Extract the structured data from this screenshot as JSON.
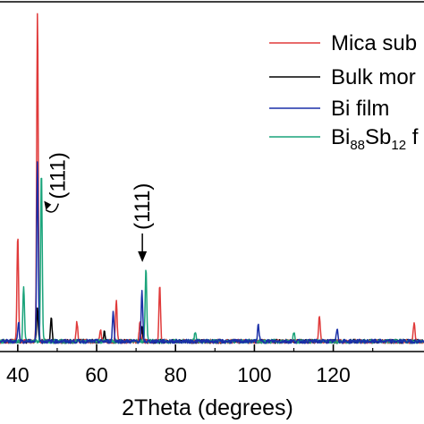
{
  "chart_data": {
    "type": "line",
    "xlabel": "2Theta (degrees)",
    "ylabel": "",
    "title": "",
    "xlim": [
      35.5,
      143
    ],
    "ylim": [
      0,
      1.0
    ],
    "x_ticks": [
      40,
      60,
      80,
      100,
      120
    ],
    "x_tick_labels": [
      "40",
      "60",
      "80",
      "100",
      "120"
    ],
    "grid": false,
    "legend_position": "top-right",
    "series": [
      {
        "name": "Mica sub",
        "color": "#e03a3a",
        "peaks": [
          [
            40.0,
            0.32
          ],
          [
            45.0,
            1.0
          ],
          [
            55.0,
            0.06
          ],
          [
            61.0,
            0.04
          ],
          [
            65.0,
            0.12
          ],
          [
            71.0,
            0.06
          ],
          [
            76.0,
            0.17
          ],
          [
            116.5,
            0.08
          ],
          [
            140.5,
            0.06
          ]
        ]
      },
      {
        "name": "Bulk mor",
        "color": "#000000",
        "peaks": [
          [
            45.0,
            0.1
          ],
          [
            48.5,
            0.07
          ],
          [
            62.0,
            0.03
          ],
          [
            71.5,
            0.04
          ]
        ]
      },
      {
        "name": "Bi film",
        "color": "#1a2fa8",
        "peaks": [
          [
            40.2,
            0.06
          ],
          [
            45.0,
            0.55
          ],
          [
            64.2,
            0.09
          ],
          [
            71.5,
            0.15
          ],
          [
            101.0,
            0.05
          ],
          [
            121.0,
            0.04
          ]
        ]
      },
      {
        "name": "Bi88Sb12",
        "name_parts": [
          "Bi",
          "88",
          "Sb",
          "12",
          " f"
        ],
        "color": "#1aa37a",
        "peaks": [
          [
            41.5,
            0.17
          ],
          [
            46.0,
            0.52
          ],
          [
            72.5,
            0.22
          ],
          [
            85.0,
            0.03
          ],
          [
            110.0,
            0.03
          ]
        ]
      }
    ],
    "annotations": [
      {
        "text": "(111)",
        "x": 46.0,
        "y": 0.52
      },
      {
        "text": "(111)",
        "x": 72.5,
        "y": 0.22
      }
    ]
  }
}
